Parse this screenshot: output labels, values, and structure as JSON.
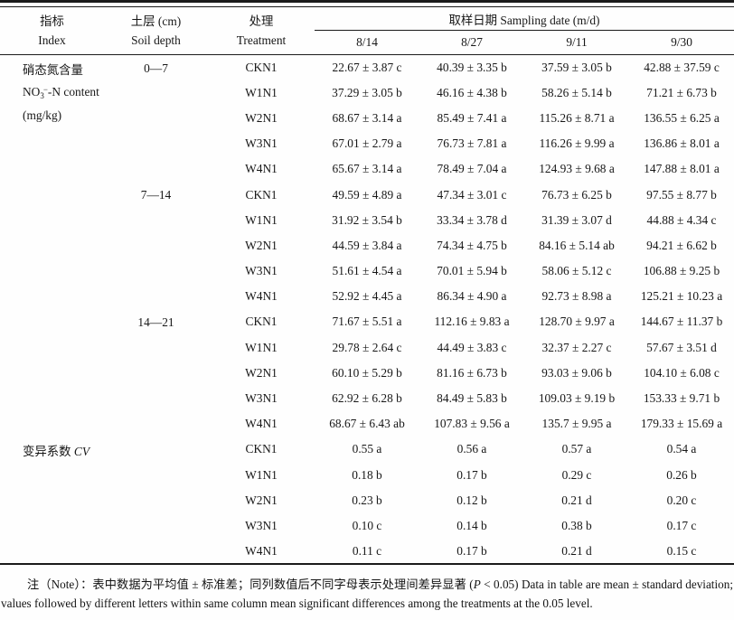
{
  "header": {
    "col_index": {
      "zh": "指标",
      "en": "Index"
    },
    "col_soil_depth": {
      "zh": "土层 (cm)",
      "en": "Soil depth"
    },
    "col_treatment": {
      "zh": "处理",
      "en": "Treatment"
    },
    "col_sampling_date": "取样日期 Sampling date (m/d)",
    "dates": [
      "8/14",
      "8/27",
      "9/11",
      "9/30"
    ]
  },
  "index_groups": [
    {
      "rowspan": 15,
      "lines": [
        {
          "text": "硝态氮含量"
        },
        {
          "pre": "NO",
          "sub": "3",
          "sup": "−",
          "post": "-N content"
        },
        {
          "text": "(mg/kg)"
        }
      ]
    },
    {
      "rowspan": 5,
      "lines": [
        {
          "text": "变异系数 ",
          "italic": "CV"
        }
      ]
    }
  ],
  "depth_groups": [
    {
      "label": "0—7",
      "rowspan": 5
    },
    {
      "label": "7—14",
      "rowspan": 5
    },
    {
      "label": "14—21",
      "rowspan": 5
    },
    {
      "label": "",
      "rowspan": 5
    }
  ],
  "rows": [
    {
      "treatment": "CKN1",
      "values": [
        "22.67 ± 3.87 c",
        "40.39 ± 3.35 b",
        "37.59 ± 3.05 b",
        "42.88 ± 37.59 c"
      ]
    },
    {
      "treatment": "W1N1",
      "values": [
        "37.29 ± 3.05 b",
        "46.16 ± 4.38 b",
        "58.26 ± 5.14 b",
        "71.21 ± 6.73 b"
      ]
    },
    {
      "treatment": "W2N1",
      "values": [
        "68.67 ± 3.14 a",
        "85.49 ± 7.41 a",
        "115.26 ± 8.71 a",
        "136.55 ± 6.25 a"
      ]
    },
    {
      "treatment": "W3N1",
      "values": [
        "67.01 ± 2.79 a",
        "76.73 ± 7.81 a",
        "116.26 ± 9.99 a",
        "136.86 ± 8.01 a"
      ]
    },
    {
      "treatment": "W4N1",
      "values": [
        "65.67 ± 3.14 a",
        "78.49 ± 7.04 a",
        "124.93 ± 9.68 a",
        "147.88 ± 8.01 a"
      ]
    },
    {
      "treatment": "CKN1",
      "values": [
        "49.59 ± 4.89 a",
        "47.34 ± 3.01 c",
        "76.73 ± 6.25 b",
        "97.55 ± 8.77 b"
      ]
    },
    {
      "treatment": "W1N1",
      "values": [
        "31.92 ± 3.54 b",
        "33.34 ± 3.78 d",
        "31.39 ± 3.07 d",
        "44.88 ± 4.34 c"
      ]
    },
    {
      "treatment": "W2N1",
      "values": [
        "44.59 ± 3.84 a",
        "74.34 ± 4.75 b",
        "84.16 ± 5.14 ab",
        "94.21 ± 6.62 b"
      ]
    },
    {
      "treatment": "W3N1",
      "values": [
        "51.61 ± 4.54 a",
        "70.01 ± 5.94 b",
        "58.06 ± 5.12 c",
        "106.88 ± 9.25 b"
      ]
    },
    {
      "treatment": "W4N1",
      "values": [
        "52.92 ± 4.45 a",
        "86.34 ± 4.90 a",
        "92.73 ± 8.98 a",
        "125.21 ± 10.23 a"
      ]
    },
    {
      "treatment": "CKN1",
      "values": [
        "71.67 ± 5.51 a",
        "112.16 ± 9.83 a",
        "128.70 ± 9.97 a",
        "144.67 ± 11.37 b"
      ]
    },
    {
      "treatment": "W1N1",
      "values": [
        "29.78 ± 2.64 c",
        "44.49 ± 3.83 c",
        "32.37 ± 2.27 c",
        "57.67 ± 3.51 d"
      ]
    },
    {
      "treatment": "W2N1",
      "values": [
        "60.10 ± 5.29 b",
        "81.16 ± 6.73 b",
        "93.03 ± 9.06 b",
        "104.10 ± 6.08 c"
      ]
    },
    {
      "treatment": "W3N1",
      "values": [
        "62.92 ± 6.28 b",
        "84.49 ± 5.83 b",
        "109.03 ± 9.19 b",
        "153.33 ± 9.71 b"
      ]
    },
    {
      "treatment": "W4N1",
      "values": [
        "68.67 ± 6.43 ab",
        "107.83 ± 9.56 a",
        "135.7 ± 9.95 a",
        "179.33 ± 15.69 a"
      ]
    },
    {
      "treatment": "CKN1",
      "values": [
        "0.55 a",
        "0.56 a",
        "0.57 a",
        "0.54 a"
      ]
    },
    {
      "treatment": "W1N1",
      "values": [
        "0.18 b",
        "0.17 b",
        "0.29 c",
        "0.26 b"
      ]
    },
    {
      "treatment": "W2N1",
      "values": [
        "0.23 b",
        "0.12 b",
        "0.21 d",
        "0.20 c"
      ]
    },
    {
      "treatment": "W3N1",
      "values": [
        "0.10 c",
        "0.14 b",
        "0.38 b",
        "0.17 c"
      ]
    },
    {
      "treatment": "W4N1",
      "values": [
        "0.11 c",
        "0.17 b",
        "0.21 d",
        "0.15 c"
      ]
    }
  ],
  "note": {
    "part1": "注（Note）：表中数据为平均值 ± 标准差；同列数值后不同字母表示处理间差异显著 (",
    "p_italic": "P",
    "part2": " < 0.05) Data in table are mean ± standard deviation; values followed by different letters within same column mean significant differences among the treatments at the 0.05 level."
  }
}
